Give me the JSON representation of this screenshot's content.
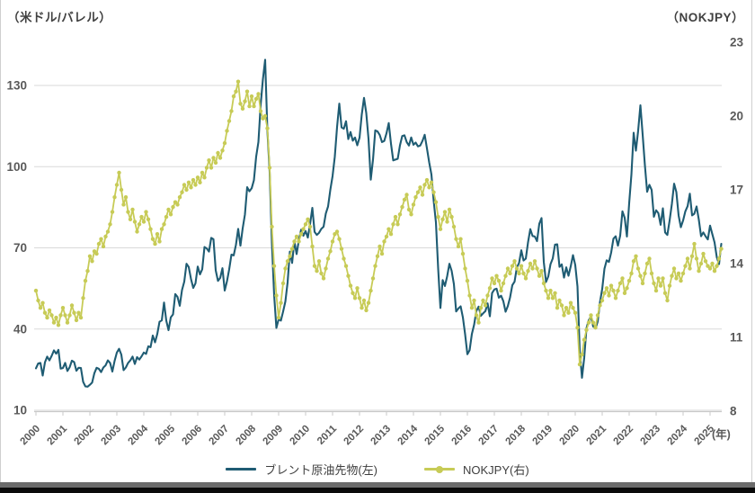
{
  "titles": {
    "left_axis_title": "（米ドル/バレル）",
    "right_axis_title": "（NOKJPY）",
    "x_unit_label": "(年)"
  },
  "legend": {
    "series1_label": "ブレント原油先物(左)",
    "series2_label": "NOKJPY(右)"
  },
  "colors": {
    "brent": "#1F5C73",
    "nokjpy": "#C7CB56",
    "gridline": "#D9D9D9",
    "axis_line": "#C9C9C9",
    "tick_text": "#595959"
  },
  "chart_data": {
    "type": "line",
    "frequency": "monthly",
    "x_start_year": 2000,
    "x_end": "2025-06",
    "grid": "horizontal-only",
    "legend_position": "bottom-center",
    "left_axis": {
      "title": "（米ドル/バレル）",
      "ticks": [
        10,
        40,
        70,
        100,
        130
      ],
      "range": [
        10,
        145
      ]
    },
    "right_axis": {
      "title": "（NOKJPY）",
      "ticks": [
        8,
        11,
        14,
        17,
        20,
        23
      ],
      "range": [
        8,
        23
      ]
    },
    "x_ticks": [
      "2000",
      "2001",
      "2002",
      "2003",
      "2004",
      "2005",
      "2006",
      "2007",
      "2008",
      "2009",
      "2010",
      "2011",
      "2012",
      "2013",
      "2014",
      "2015",
      "2016",
      "2017",
      "2018",
      "2019",
      "2020",
      "2021",
      "2022",
      "2023",
      "2024",
      "2025"
    ],
    "x_unit_label": "(年)",
    "series": [
      {
        "name": "ブレント原油先物(左)",
        "axis": "left",
        "color": "#1F5C73",
        "marker": false,
        "values": [
          25.5,
          27.3,
          27.5,
          22.8,
          27.7,
          29.8,
          28.4,
          30.1,
          32.1,
          30.9,
          32.3,
          25.4,
          25.6,
          27.5,
          24.5,
          25.9,
          28.3,
          27.8,
          24.6,
          25.7,
          25.6,
          20.5,
          18.8,
          18.7,
          19.4,
          20.2,
          23.7,
          25.7,
          25.3,
          24.1,
          25.8,
          26.6,
          28.4,
          27.5,
          24.3,
          28.2,
          31.3,
          32.7,
          30.5,
          24.8,
          25.8,
          27.5,
          28.4,
          29.8,
          27.1,
          29.6,
          28.7,
          29.9,
          31.3,
          30.8,
          33.6,
          33.3,
          37.6,
          35.1,
          38.2,
          42.7,
          43.2,
          49.8,
          43.1,
          39.6,
          44.3,
          45.4,
          52.9,
          51.9,
          48.6,
          54.4,
          57.5,
          64.1,
          62.9,
          58.5,
          55.2,
          56.9,
          63.1,
          60.2,
          62.1,
          70.3,
          69.8,
          68.6,
          73.7,
          73.2,
          61.7,
          57.8,
          58.9,
          62.5,
          54.2,
          57.6,
          62.1,
          67.5,
          67.2,
          71.1,
          77.0,
          70.8,
          77.2,
          82.3,
          92.4,
          90.9,
          92.0,
          95.0,
          103.7,
          109.1,
          122.8,
          132.3,
          139.5,
          113.2,
          98.1,
          71.9,
          52.5,
          40.4,
          43.6,
          43.1,
          46.5,
          50.2,
          57.3,
          68.6,
          64.4,
          72.5,
          67.7,
          72.8,
          76.7,
          74.5,
          76.2,
          73.8,
          78.8,
          84.8,
          75.9,
          74.8,
          75.6,
          77.0,
          77.8,
          82.7,
          85.3,
          91.4,
          96.5,
          103.7,
          114.6,
          123.3,
          114.5,
          114.0,
          116.8,
          110.2,
          112.8,
          109.6,
          110.8,
          107.9,
          110.7,
          119.3,
          125.4,
          119.8,
          110.3,
          95.2,
          102.6,
          113.4,
          113.0,
          111.7,
          109.1,
          109.5,
          112.3,
          116.1,
          108.5,
          102.3,
          102.6,
          102.9,
          107.9,
          111.3,
          111.6,
          109.1,
          107.8,
          110.8,
          108.1,
          108.9,
          107.5,
          107.8,
          109.5,
          111.8,
          106.8,
          101.6,
          97.1,
          87.4,
          79.4,
          62.3,
          47.8,
          58.1,
          55.9,
          59.5,
          64.1,
          61.5,
          56.6,
          46.5,
          47.6,
          48.4,
          44.3,
          38.0,
          30.7,
          32.2,
          38.2,
          41.6,
          46.7,
          48.3,
          44.9,
          45.8,
          46.6,
          49.5,
          44.7,
          53.3,
          54.6,
          54.9,
          51.6,
          52.3,
          50.3,
          46.4,
          48.5,
          51.7,
          56.2,
          57.5,
          62.7,
          64.4,
          69.1,
          65.3,
          66.0,
          72.1,
          76.9,
          74.4,
          74.2,
          72.5,
          78.9,
          81.0,
          64.8,
          57.4,
          59.4,
          64.0,
          66.1,
          71.2,
          71.3,
          63.0,
          63.9,
          59.0,
          62.8,
          59.7,
          63.2,
          67.3,
          63.7,
          55.7,
          32.0,
          22.0,
          29.4,
          40.3,
          43.2,
          44.7,
          40.9,
          40.2,
          42.7,
          49.9,
          54.8,
          62.3,
          65.4,
          64.8,
          68.3,
          73.4,
          74.3,
          70.8,
          74.5,
          83.5,
          81.1,
          74.2,
          86.5,
          97.1,
          112.5,
          105.9,
          113.3,
          122.7,
          111.9,
          100.5,
          90.7,
          93.3,
          91.4,
          81.5,
          83.9,
          82.8,
          78.5,
          84.6,
          75.7,
          74.8,
          80.1,
          86.2,
          93.7,
          90.6,
          82.0,
          77.6,
          80.1,
          83.5,
          85.4,
          90.0,
          82.0,
          82.6,
          85.3,
          80.4,
          74.3,
          75.7,
          74.3,
          73.1,
          78.2,
          75.1,
          72.0,
          66.5,
          64.0,
          71.5
        ]
      },
      {
        "name": "NOKJPY(右)",
        "axis": "right",
        "color": "#C7CB56",
        "marker": true,
        "values": [
          12.9,
          12.5,
          12.2,
          12.4,
          12.0,
          11.8,
          12.1,
          11.9,
          11.6,
          11.8,
          11.5,
          11.9,
          12.2,
          11.9,
          11.6,
          11.9,
          12.3,
          12.0,
          11.7,
          12.0,
          11.8,
          12.6,
          13.3,
          13.7,
          14.3,
          14.1,
          14.5,
          14.4,
          14.8,
          15.0,
          14.7,
          15.1,
          15.3,
          15.6,
          16.1,
          16.7,
          17.2,
          17.7,
          17.0,
          16.4,
          16.7,
          16.1,
          15.8,
          16.2,
          15.7,
          15.3,
          15.6,
          15.9,
          15.7,
          16.1,
          15.8,
          15.4,
          15.0,
          14.8,
          15.2,
          14.9,
          15.4,
          15.6,
          15.9,
          16.2,
          16.0,
          16.3,
          16.5,
          16.4,
          16.7,
          16.9,
          17.2,
          17.0,
          17.3,
          17.1,
          17.4,
          17.2,
          17.5,
          17.3,
          17.7,
          17.5,
          17.9,
          18.2,
          17.9,
          18.3,
          18.1,
          18.5,
          18.3,
          18.6,
          18.9,
          19.4,
          19.8,
          20.2,
          20.8,
          21.0,
          21.4,
          20.5,
          20.3,
          20.6,
          21.0,
          20.4,
          20.8,
          20.4,
          20.7,
          20.9,
          20.2,
          19.9,
          20.0,
          19.5,
          17.9,
          15.5,
          13.9,
          12.7,
          11.8,
          12.4,
          13.2,
          13.8,
          14.1,
          14.3,
          14.6,
          14.9,
          15.1,
          14.9,
          15.2,
          15.4,
          15.6,
          15.8,
          15.5,
          14.7,
          13.9,
          13.7,
          14.1,
          13.6,
          13.4,
          13.8,
          14.2,
          14.5,
          14.9,
          15.2,
          15.3,
          15.0,
          14.6,
          14.2,
          13.9,
          13.5,
          13.1,
          12.8,
          12.6,
          13.0,
          12.6,
          12.2,
          12.5,
          12.1,
          12.4,
          12.9,
          13.4,
          13.9,
          14.3,
          14.7,
          14.4,
          14.9,
          15.1,
          15.4,
          15.2,
          15.6,
          15.9,
          15.6,
          16.0,
          16.3,
          16.6,
          16.8,
          16.2,
          16.0,
          16.4,
          16.7,
          16.9,
          17.1,
          16.8,
          17.2,
          17.4,
          17.1,
          17.3,
          16.9,
          16.5,
          15.9,
          15.4,
          15.8,
          16.1,
          15.7,
          16.2,
          15.9,
          15.5,
          15.0,
          14.7,
          15.0,
          14.4,
          13.8,
          13.3,
          12.7,
          12.2,
          12.5,
          11.9,
          11.6,
          12.2,
          12.5,
          12.3,
          12.7,
          13.0,
          13.4,
          13.2,
          13.5,
          13.3,
          12.9,
          13.2,
          13.5,
          13.8,
          13.6,
          13.9,
          14.1,
          13.8,
          13.6,
          13.9,
          13.6,
          13.4,
          13.7,
          14.0,
          13.8,
          14.1,
          13.8,
          13.5,
          13.7,
          13.2,
          12.9,
          12.6,
          12.9,
          12.6,
          12.8,
          12.2,
          12.5,
          12.3,
          11.9,
          12.2,
          12.0,
          12.4,
          12.2,
          12.0,
          11.4,
          9.9,
          10.3,
          10.9,
          11.3,
          11.6,
          11.9,
          11.6,
          11.4,
          11.9,
          12.3,
          12.5,
          12.8,
          13.0,
          12.7,
          13.1,
          12.9,
          12.6,
          12.9,
          13.2,
          13.4,
          12.8,
          13.0,
          13.3,
          13.6,
          14.1,
          14.3,
          13.8,
          13.5,
          13.2,
          13.6,
          14.0,
          14.2,
          13.6,
          13.2,
          12.9,
          13.4,
          13.1,
          13.4,
          12.8,
          12.5,
          13.1,
          13.5,
          13.8,
          13.4,
          13.6,
          13.3,
          13.6,
          13.9,
          14.2,
          13.8,
          14.3,
          14.8,
          14.2,
          13.7,
          14.0,
          14.4,
          14.1,
          13.9,
          13.8,
          14.0,
          13.7,
          13.9,
          14.2,
          14.6
        ]
      }
    ]
  }
}
